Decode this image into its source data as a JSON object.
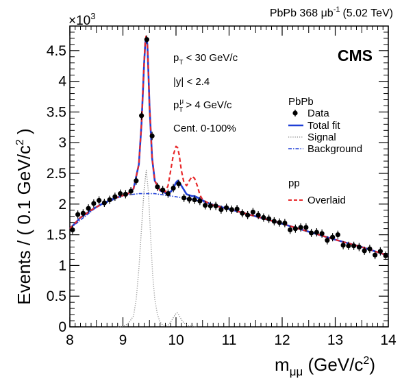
{
  "header": {
    "lumi_text": "PbPb 368 μb",
    "lumi_sup": "-1",
    "lumi_energy": "(5.02 TeV)",
    "cms_label": "CMS"
  },
  "info": {
    "pt_pre": "p",
    "pt_sub": "T",
    "pt_post": " < 30 GeV/c",
    "y_cut": "|y| < 2.4",
    "mu_pre": "p",
    "mu_sup": "μ",
    "mu_sub": "T",
    "mu_post": " > 4 GeV/c",
    "centrality": "Cent. 0-100%"
  },
  "legend": {
    "pbpb_title": "PbPb",
    "data": "Data",
    "total_fit": "Total fit",
    "signal": "Signal",
    "background": "Background",
    "pp_title": "pp",
    "overlaid": "Overlaid"
  },
  "colors": {
    "data": "#000000",
    "total_fit": "#1f3fd6",
    "signal": "#8a8a8a",
    "background": "#1f3fd6",
    "overlaid": "#e8282a"
  },
  "chart_data": {
    "type": "line",
    "xlabel_main": "m",
    "xlabel_sub": "μμ",
    "xlabel_unit": " (GeV/c",
    "xlabel_unit_sup": "2",
    "xlabel_close": ")",
    "ylabel_main": "Events / ( 0.1 GeV/c",
    "ylabel_sup": "2",
    "ylabel_close": " )",
    "y_multiplier_base": "×10",
    "y_multiplier_exp": "3",
    "xlim": [
      8,
      14
    ],
    "ylim": [
      0,
      4.9
    ],
    "x_ticks": [
      8,
      9,
      10,
      11,
      12,
      13,
      14
    ],
    "x_tick_labels": [
      "8",
      "9",
      "10",
      "11",
      "12",
      "13",
      "14"
    ],
    "y_ticks": [
      0,
      0.5,
      1,
      1.5,
      2,
      2.5,
      3,
      3.5,
      4,
      4.5
    ],
    "y_tick_labels": [
      "0",
      "0.5",
      "1",
      "1.5",
      "2",
      "2.5",
      "3",
      "3.5",
      "4",
      "4.5"
    ],
    "series": [
      {
        "name": "Data",
        "style": "points",
        "x": [
          8.05,
          8.15,
          8.25,
          8.35,
          8.45,
          8.55,
          8.65,
          8.75,
          8.85,
          8.95,
          9.05,
          9.15,
          9.25,
          9.35,
          9.45,
          9.55,
          9.65,
          9.75,
          9.85,
          9.95,
          10.05,
          10.15,
          10.25,
          10.35,
          10.45,
          10.55,
          10.65,
          10.75,
          10.85,
          10.95,
          11.05,
          11.15,
          11.25,
          11.35,
          11.45,
          11.55,
          11.65,
          11.75,
          11.85,
          11.95,
          12.05,
          12.15,
          12.25,
          12.35,
          12.45,
          12.55,
          12.65,
          12.75,
          12.85,
          12.95,
          13.05,
          13.15,
          13.25,
          13.35,
          13.45,
          13.55,
          13.65,
          13.75,
          13.85,
          13.95
        ],
        "values": [
          1.58,
          1.83,
          1.85,
          1.93,
          2.01,
          2.06,
          2.02,
          2.07,
          2.12,
          2.17,
          2.16,
          2.21,
          2.38,
          3.44,
          4.68,
          3.11,
          2.28,
          2.23,
          2.17,
          2.26,
          2.33,
          2.1,
          2.08,
          2.07,
          2.05,
          1.98,
          1.97,
          1.97,
          1.91,
          1.94,
          1.91,
          1.92,
          1.85,
          1.82,
          1.87,
          1.82,
          1.78,
          1.76,
          1.72,
          1.7,
          1.69,
          1.58,
          1.6,
          1.62,
          1.62,
          1.53,
          1.54,
          1.52,
          1.41,
          1.46,
          1.5,
          1.33,
          1.32,
          1.32,
          1.3,
          1.24,
          1.27,
          1.17,
          1.23,
          1.16
        ]
      },
      {
        "name": "Total fit",
        "style": "solid",
        "x": [
          8.0,
          8.2,
          8.4,
          8.6,
          8.8,
          9.0,
          9.1,
          9.2,
          9.3,
          9.35,
          9.4,
          9.42,
          9.44,
          9.46,
          9.48,
          9.5,
          9.55,
          9.6,
          9.7,
          9.8,
          9.9,
          9.95,
          10.0,
          10.03,
          10.06,
          10.1,
          10.2,
          10.3,
          10.35,
          10.4,
          10.5,
          10.7,
          11.0,
          11.5,
          12.0,
          12.5,
          13.0,
          13.5,
          14.0
        ],
        "values": [
          1.6,
          1.78,
          1.9,
          2.0,
          2.08,
          2.14,
          2.17,
          2.25,
          2.65,
          3.3,
          4.3,
          4.62,
          4.73,
          4.6,
          4.15,
          3.6,
          2.75,
          2.38,
          2.22,
          2.18,
          2.2,
          2.26,
          2.35,
          2.38,
          2.36,
          2.3,
          2.16,
          2.13,
          2.13,
          2.11,
          2.06,
          1.98,
          1.92,
          1.8,
          1.68,
          1.55,
          1.42,
          1.3,
          1.16
        ]
      },
      {
        "name": "Signal",
        "style": "dotted",
        "x": [
          8.9,
          9.0,
          9.1,
          9.2,
          9.25,
          9.3,
          9.35,
          9.4,
          9.44,
          9.48,
          9.52,
          9.56,
          9.6,
          9.65,
          9.7,
          9.75,
          9.8,
          9.85,
          9.9,
          9.95,
          10.0,
          10.02,
          10.05,
          10.1,
          10.15,
          10.2,
          10.3,
          10.4
        ],
        "values": [
          0.0,
          0.01,
          0.05,
          0.18,
          0.45,
          0.95,
          1.6,
          2.25,
          2.55,
          2.2,
          1.5,
          0.85,
          0.45,
          0.2,
          0.08,
          0.03,
          0.02,
          0.03,
          0.08,
          0.15,
          0.22,
          0.23,
          0.2,
          0.12,
          0.06,
          0.03,
          0.01,
          0.0
        ]
      },
      {
        "name": "Background",
        "style": "dashdot",
        "x": [
          8.0,
          8.5,
          9.0,
          9.3,
          9.6,
          10.0,
          10.5,
          11.0,
          11.5,
          12.0,
          12.5,
          13.0,
          13.5,
          14.0
        ],
        "values": [
          1.6,
          1.95,
          2.14,
          2.17,
          2.17,
          2.12,
          2.04,
          1.93,
          1.8,
          1.68,
          1.55,
          1.42,
          1.3,
          1.16
        ]
      },
      {
        "name": "Overlaid",
        "style": "dashed",
        "x": [
          8.0,
          8.2,
          8.4,
          8.6,
          8.8,
          9.0,
          9.1,
          9.2,
          9.3,
          9.35,
          9.4,
          9.42,
          9.44,
          9.46,
          9.48,
          9.5,
          9.55,
          9.6,
          9.7,
          9.8,
          9.85,
          9.9,
          9.95,
          10.0,
          10.03,
          10.06,
          10.1,
          10.15,
          10.2,
          10.25,
          10.3,
          10.35,
          10.4,
          10.45,
          10.5,
          10.6,
          10.7,
          11.0,
          11.5,
          12.0,
          12.5,
          13.0,
          13.5,
          14.0
        ],
        "values": [
          1.6,
          1.78,
          1.9,
          2.0,
          2.08,
          2.14,
          2.17,
          2.25,
          2.65,
          3.3,
          4.32,
          4.65,
          4.75,
          4.62,
          4.15,
          3.6,
          2.75,
          2.38,
          2.22,
          2.2,
          2.3,
          2.55,
          2.8,
          2.94,
          2.92,
          2.8,
          2.55,
          2.35,
          2.3,
          2.38,
          2.45,
          2.42,
          2.3,
          2.15,
          2.07,
          2.02,
          1.98,
          1.92,
          1.8,
          1.68,
          1.55,
          1.42,
          1.3,
          1.16
        ]
      }
    ]
  }
}
